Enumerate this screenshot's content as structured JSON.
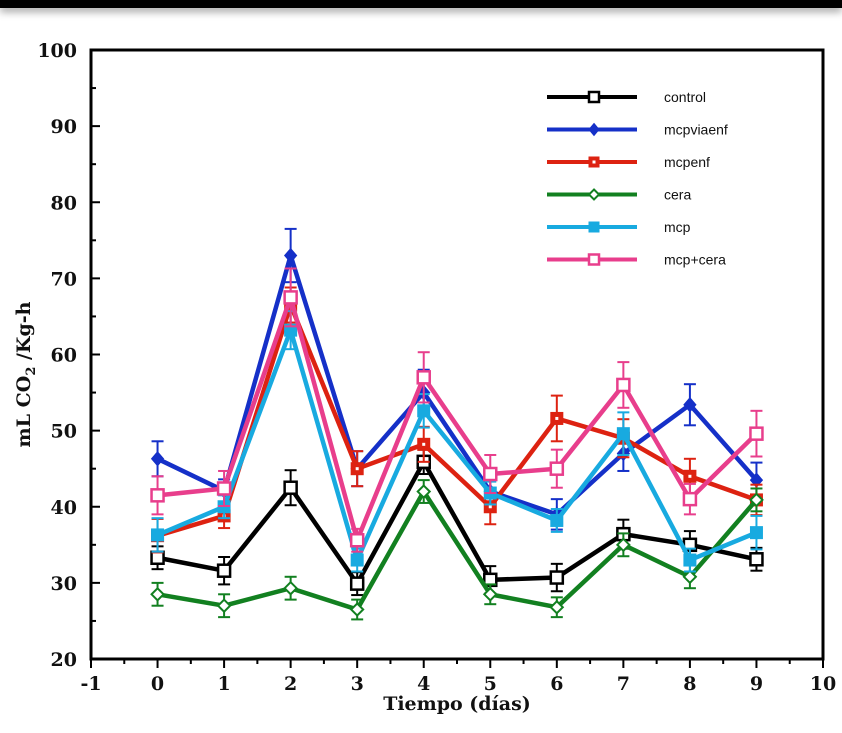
{
  "chart_data": {
    "type": "line",
    "title": "",
    "xlabel": "Tiempo (días)",
    "ylabel": "mL CO₂ /Kg-h",
    "ylabel_parts": {
      "pre": "mL CO",
      "sub": "2",
      "post": " /Kg-h"
    },
    "xlim": [
      -1,
      10
    ],
    "ylim": [
      20,
      100
    ],
    "x_ticks": [
      -1,
      0,
      1,
      2,
      3,
      4,
      5,
      6,
      7,
      8,
      9,
      10
    ],
    "x_tick_labels": [
      "-1",
      "0",
      "1",
      "2",
      "3",
      "4",
      "5",
      "6",
      "7",
      "8",
      "9",
      "10"
    ],
    "y_ticks": [
      20,
      30,
      40,
      50,
      60,
      70,
      80,
      90,
      100
    ],
    "y_tick_labels": [
      "20",
      "30",
      "40",
      "50",
      "60",
      "70",
      "80",
      "90",
      "100"
    ],
    "grid": false,
    "legend_position": "top-right",
    "x": [
      0,
      1,
      2,
      3,
      4,
      5,
      6,
      7,
      8,
      9
    ],
    "series": [
      {
        "name": "control",
        "color": "#000000",
        "marker": "open-square",
        "values": [
          33.3,
          31.6,
          42.5,
          29.9,
          45.9,
          30.4,
          30.7,
          36.4,
          35.0,
          33.1
        ],
        "errors": [
          1.5,
          1.8,
          2.3,
          1.5,
          1.6,
          1.8,
          1.8,
          1.9,
          1.8,
          1.5
        ]
      },
      {
        "name": "mcpviaenf",
        "color": "#1530c8",
        "marker": "filled-diamond",
        "values": [
          46.3,
          42.1,
          73.0,
          45.0,
          55.0,
          42.0,
          39.0,
          47.0,
          53.4,
          43.5
        ],
        "errors": [
          2.3,
          1.5,
          3.5,
          2.3,
          3.0,
          1.5,
          2.0,
          2.3,
          2.7,
          2.3
        ]
      },
      {
        "name": "mcpenf",
        "color": "#dd2211",
        "marker": "square-dot",
        "values": [
          36.2,
          38.8,
          66.5,
          45.0,
          48.2,
          40.0,
          51.6,
          49.0,
          44.0,
          40.9
        ],
        "errors": [
          2.2,
          1.6,
          2.3,
          2.3,
          2.3,
          2.3,
          3.0,
          2.5,
          2.3,
          2.0
        ]
      },
      {
        "name": "cera",
        "color": "#128020",
        "marker": "open-diamond",
        "values": [
          28.5,
          27.0,
          29.3,
          26.5,
          42.0,
          28.5,
          26.8,
          35.0,
          30.8,
          40.9
        ],
        "errors": [
          1.5,
          1.5,
          1.5,
          1.3,
          1.5,
          1.3,
          1.3,
          1.5,
          1.5,
          1.5
        ]
      },
      {
        "name": "mcp",
        "color": "#18aae0",
        "marker": "filled-square",
        "values": [
          36.3,
          40.0,
          63.2,
          33.0,
          52.6,
          41.8,
          38.2,
          49.6,
          33.0,
          36.6
        ],
        "errors": [
          2.2,
          1.5,
          2.5,
          1.5,
          2.2,
          1.5,
          1.5,
          2.8,
          1.5,
          2.2
        ]
      },
      {
        "name": "mcp+cera",
        "color": "#e83e8c",
        "marker": "open-square",
        "values": [
          41.5,
          42.4,
          67.5,
          35.6,
          57.0,
          44.3,
          45.0,
          56.0,
          41.0,
          49.6
        ],
        "errors": [
          2.5,
          2.3,
          3.8,
          1.5,
          3.3,
          2.5,
          2.5,
          3.0,
          2.0,
          3.0
        ]
      }
    ]
  }
}
